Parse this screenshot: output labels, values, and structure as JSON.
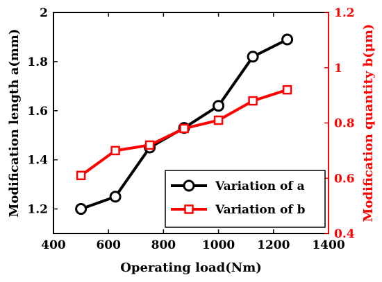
{
  "chart_data": {
    "type": "line",
    "x": [
      500,
      625,
      750,
      875,
      1000,
      1125,
      1250
    ],
    "xlabel": "Operating load(Nm)",
    "xlim": [
      400,
      1400
    ],
    "xticks": [
      "400",
      "600",
      "800",
      "1000",
      "1200",
      "1400"
    ],
    "ylabel_left": "Modification length a(mm)",
    "ylim_left": [
      1.1,
      2.0
    ],
    "yticks_left": [
      "1.2",
      "1.4",
      "1.6",
      "1.8",
      "2"
    ],
    "ylabel_right": "Modification quantity b(μm)",
    "ylim_right": [
      0.4,
      1.2
    ],
    "yticks_right": [
      "0.4",
      "0.6",
      "0.8",
      "1",
      "1.2"
    ],
    "series": [
      {
        "name": "Variation of a",
        "axis": "left",
        "marker": "circle",
        "color": "#000000",
        "values": [
          1.2,
          1.25,
          1.45,
          1.53,
          1.62,
          1.82,
          1.89
        ]
      },
      {
        "name": "Variation of b",
        "axis": "right",
        "marker": "square",
        "color": "#ff0000",
        "values": [
          0.61,
          0.7,
          0.72,
          0.78,
          0.81,
          0.88,
          0.92
        ]
      }
    ],
    "legend_position": "bottom-right",
    "grid": false
  }
}
